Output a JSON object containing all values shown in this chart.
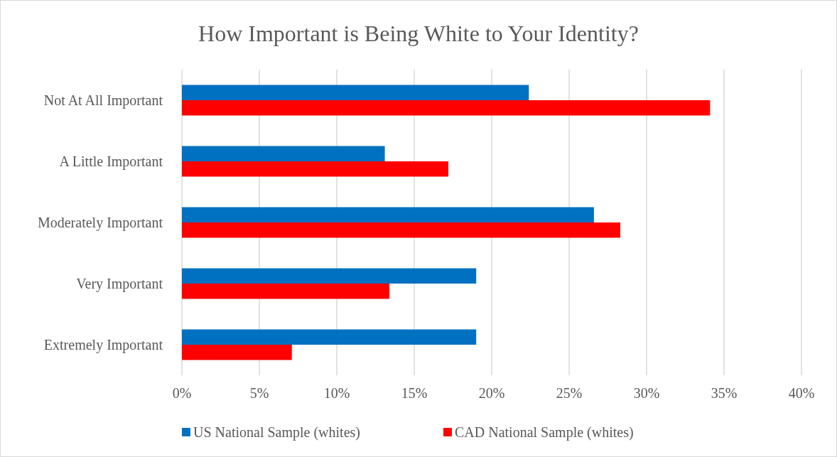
{
  "chart_data": {
    "type": "bar",
    "orientation": "horizontal",
    "title": "How Important is Being White to Your Identity?",
    "categories": [
      "Not At All Important",
      "A Little Important",
      "Moderately Important",
      "Very Important",
      "Extremely Important"
    ],
    "series": [
      {
        "name": "US National Sample (whites)",
        "color": "#0070c0",
        "values": [
          22.4,
          13.1,
          26.6,
          19.0,
          19.0
        ]
      },
      {
        "name": "CAD National Sample (whites)",
        "color": "#ff0000",
        "values": [
          34.1,
          17.2,
          28.3,
          13.4,
          7.1
        ]
      }
    ],
    "xlim": [
      0,
      40
    ],
    "xticks": [
      {
        "value": 0,
        "label": "0%"
      },
      {
        "value": 5,
        "label": "5%"
      },
      {
        "value": 10,
        "label": "10%"
      },
      {
        "value": 15,
        "label": "15%"
      },
      {
        "value": 20,
        "label": "20%"
      },
      {
        "value": 25,
        "label": "25%"
      },
      {
        "value": 30,
        "label": "30%"
      },
      {
        "value": 35,
        "label": "35%"
      },
      {
        "value": 40,
        "label": "40%"
      }
    ],
    "grid": "x",
    "legend": "bottom"
  }
}
